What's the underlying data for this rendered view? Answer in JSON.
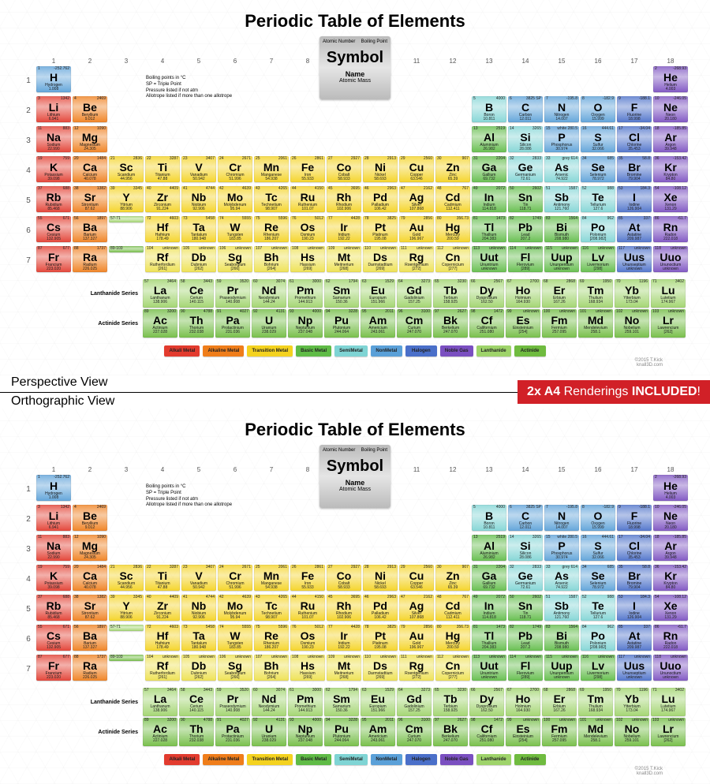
{
  "title": "Periodic Table of Elements",
  "views": {
    "top": "Perspective View",
    "bottom": "Orthographic View"
  },
  "banner": {
    "prefix": "2x A4",
    "mid": " Renderings ",
    "suffix": "INCLUDED",
    "tail": "!"
  },
  "key": {
    "an": "Atomic Number",
    "bp": "Boiling Point",
    "sym": "Symbol",
    "name": "Name",
    "mass": "Atomic Mass"
  },
  "note": "Boiling points in °C\nSP = Triple Point\nPressure listed if not atm\nAllotrope listed if more than one allotrope",
  "credit": "©2015 T.Kick\nknall3D.com",
  "colors": {
    "alkali": "#e23b2e",
    "alkaline": "#ef7d1a",
    "transition": "#f4d21f",
    "basic": "#5fbb46",
    "semimetal": "#7fd4d4",
    "nonmetal": "#5aa0d8",
    "halogen": "#4a6fc9",
    "noble": "#7a4fc0",
    "lanthanide": "#9ed36a",
    "actinide": "#6fbb3f",
    "unknown": "#ede04b"
  },
  "legend": [
    {
      "label": "Alkali Metal",
      "c": "alkali"
    },
    {
      "label": "Alkaline Metal",
      "c": "alkaline"
    },
    {
      "label": "Transition Metal",
      "c": "transition"
    },
    {
      "label": "Basic Metal",
      "c": "basic"
    },
    {
      "label": "SemiMetal",
      "c": "semimetal"
    },
    {
      "label": "NonMetal",
      "c": "nonmetal"
    },
    {
      "label": "Halogen",
      "c": "halogen"
    },
    {
      "label": "Noble Gas",
      "c": "noble"
    },
    {
      "label": "Lanthanide",
      "c": "lanthanide"
    },
    {
      "label": "Actinide",
      "c": "actinide"
    }
  ],
  "groups": [
    1,
    2,
    3,
    4,
    5,
    6,
    7,
    8,
    9,
    10,
    11,
    12,
    13,
    14,
    15,
    16,
    17,
    18
  ],
  "periods": [
    1,
    2,
    3,
    4,
    5,
    6,
    7
  ],
  "elements": [
    {
      "n": 1,
      "s": "H",
      "nm": "Hydrogen",
      "m": "1.008",
      "bp": "-252.762",
      "g": 1,
      "p": 1,
      "c": "nonmetal"
    },
    {
      "n": 2,
      "s": "He",
      "nm": "Helium",
      "m": "4.003",
      "bp": "-268.93",
      "g": 18,
      "p": 1,
      "c": "noble"
    },
    {
      "n": 3,
      "s": "Li",
      "nm": "Lithium",
      "m": "6.941",
      "bp": "1342",
      "g": 1,
      "p": 2,
      "c": "alkali"
    },
    {
      "n": 4,
      "s": "Be",
      "nm": "Beryllium",
      "m": "9.012",
      "bp": "2469",
      "g": 2,
      "p": 2,
      "c": "alkaline"
    },
    {
      "n": 5,
      "s": "B",
      "nm": "Boron",
      "m": "10.811",
      "bp": "4000",
      "g": 13,
      "p": 2,
      "c": "semimetal"
    },
    {
      "n": 6,
      "s": "C",
      "nm": "Carbon",
      "m": "12.011",
      "bp": "3825 SP",
      "g": 14,
      "p": 2,
      "c": "nonmetal"
    },
    {
      "n": 7,
      "s": "N",
      "nm": "Nitrogen",
      "m": "14.007",
      "bp": "-195.8",
      "g": 15,
      "p": 2,
      "c": "nonmetal"
    },
    {
      "n": 8,
      "s": "O",
      "nm": "Oxygen",
      "m": "15.999",
      "bp": "-182.9",
      "g": 16,
      "p": 2,
      "c": "nonmetal"
    },
    {
      "n": 9,
      "s": "F",
      "nm": "Fluorine",
      "m": "18.998",
      "bp": "-188.1",
      "g": 17,
      "p": 2,
      "c": "halogen"
    },
    {
      "n": 10,
      "s": "Ne",
      "nm": "Neon",
      "m": "20.180",
      "bp": "-246.05",
      "g": 18,
      "p": 2,
      "c": "noble"
    },
    {
      "n": 11,
      "s": "Na",
      "nm": "Sodium",
      "m": "22.990",
      "bp": "883",
      "g": 1,
      "p": 3,
      "c": "alkali"
    },
    {
      "n": 12,
      "s": "Mg",
      "nm": "Magnesium",
      "m": "24.305",
      "bp": "1090",
      "g": 2,
      "p": 3,
      "c": "alkaline"
    },
    {
      "n": 13,
      "s": "Al",
      "nm": "Aluminium",
      "m": "26.982",
      "bp": "2519",
      "g": 13,
      "p": 3,
      "c": "basic"
    },
    {
      "n": 14,
      "s": "Si",
      "nm": "Silicon",
      "m": "28.086",
      "bp": "3265",
      "g": 14,
      "p": 3,
      "c": "semimetal"
    },
    {
      "n": 15,
      "s": "P",
      "nm": "Phosphorus",
      "m": "30.974",
      "bp": "white 280.5",
      "g": 15,
      "p": 3,
      "c": "nonmetal"
    },
    {
      "n": 16,
      "s": "S",
      "nm": "Sulfur",
      "m": "32.066",
      "bp": "444.61",
      "g": 16,
      "p": 3,
      "c": "nonmetal"
    },
    {
      "n": 17,
      "s": "Cl",
      "nm": "Chlorine",
      "m": "35.453",
      "bp": "-34.04",
      "g": 17,
      "p": 3,
      "c": "halogen"
    },
    {
      "n": 18,
      "s": "Ar",
      "nm": "Argon",
      "m": "39.948",
      "bp": "-185.85",
      "g": 18,
      "p": 3,
      "c": "noble"
    },
    {
      "n": 19,
      "s": "K",
      "nm": "Potassium",
      "m": "39.098",
      "bp": "759",
      "g": 1,
      "p": 4,
      "c": "alkali"
    },
    {
      "n": 20,
      "s": "Ca",
      "nm": "Calcium",
      "m": "40.078",
      "bp": "1484",
      "g": 2,
      "p": 4,
      "c": "alkaline"
    },
    {
      "n": 21,
      "s": "Sc",
      "nm": "Scandium",
      "m": "44.956",
      "bp": "2836",
      "g": 3,
      "p": 4,
      "c": "transition"
    },
    {
      "n": 22,
      "s": "Ti",
      "nm": "Titanium",
      "m": "47.88",
      "bp": "3287",
      "g": 4,
      "p": 4,
      "c": "transition"
    },
    {
      "n": 23,
      "s": "V",
      "nm": "Vanadium",
      "m": "50.942",
      "bp": "3407",
      "g": 5,
      "p": 4,
      "c": "transition"
    },
    {
      "n": 24,
      "s": "Cr",
      "nm": "Chromium",
      "m": "51.996",
      "bp": "2671",
      "g": 6,
      "p": 4,
      "c": "transition"
    },
    {
      "n": 25,
      "s": "Mn",
      "nm": "Manganese",
      "m": "54.938",
      "bp": "2061",
      "g": 7,
      "p": 4,
      "c": "transition"
    },
    {
      "n": 26,
      "s": "Fe",
      "nm": "Iron",
      "m": "55.933",
      "bp": "2861",
      "g": 8,
      "p": 4,
      "c": "transition"
    },
    {
      "n": 27,
      "s": "Co",
      "nm": "Cobalt",
      "m": "58.933",
      "bp": "2927",
      "g": 9,
      "p": 4,
      "c": "transition"
    },
    {
      "n": 28,
      "s": "Ni",
      "nm": "Nickel",
      "m": "58.693",
      "bp": "2913",
      "g": 10,
      "p": 4,
      "c": "transition"
    },
    {
      "n": 29,
      "s": "Cu",
      "nm": "Copper",
      "m": "63.546",
      "bp": "2560",
      "g": 11,
      "p": 4,
      "c": "transition"
    },
    {
      "n": 30,
      "s": "Zn",
      "nm": "Zinc",
      "m": "65.39",
      "bp": "907",
      "g": 12,
      "p": 4,
      "c": "transition"
    },
    {
      "n": 31,
      "s": "Ga",
      "nm": "Gallium",
      "m": "69.732",
      "bp": "2204",
      "g": 13,
      "p": 4,
      "c": "basic"
    },
    {
      "n": 32,
      "s": "Ge",
      "nm": "Germanium",
      "m": "72.61",
      "bp": "2833",
      "g": 14,
      "p": 4,
      "c": "semimetal"
    },
    {
      "n": 33,
      "s": "As",
      "nm": "Arsenic",
      "m": "74.922",
      "bp": "grey 614",
      "g": 15,
      "p": 4,
      "c": "semimetal"
    },
    {
      "n": 34,
      "s": "Se",
      "nm": "Selenium",
      "m": "78.972",
      "bp": "685",
      "g": 16,
      "p": 4,
      "c": "nonmetal"
    },
    {
      "n": 35,
      "s": "Br",
      "nm": "Bromine",
      "m": "79.904",
      "bp": "58.8",
      "g": 17,
      "p": 4,
      "c": "halogen"
    },
    {
      "n": 36,
      "s": "Kr",
      "nm": "Krypton",
      "m": "84.80",
      "bp": "-153.42",
      "g": 18,
      "p": 4,
      "c": "noble"
    },
    {
      "n": 37,
      "s": "Rb",
      "nm": "Rubidium",
      "m": "85.468",
      "bp": "688",
      "g": 1,
      "p": 5,
      "c": "alkali"
    },
    {
      "n": 38,
      "s": "Sr",
      "nm": "Strontium",
      "m": "87.62",
      "bp": "1382",
      "g": 2,
      "p": 5,
      "c": "alkaline"
    },
    {
      "n": 39,
      "s": "Y",
      "nm": "Yttrium",
      "m": "88.906",
      "bp": "3345",
      "g": 3,
      "p": 5,
      "c": "transition"
    },
    {
      "n": 40,
      "s": "Zr",
      "nm": "Zirconium",
      "m": "91.224",
      "bp": "4409",
      "g": 4,
      "p": 5,
      "c": "transition"
    },
    {
      "n": 41,
      "s": "Nb",
      "nm": "Niobium",
      "m": "92.906",
      "bp": "4744",
      "g": 5,
      "p": 5,
      "c": "transition"
    },
    {
      "n": 42,
      "s": "Mo",
      "nm": "Molybdenum",
      "m": "95.94",
      "bp": "4639",
      "g": 6,
      "p": 5,
      "c": "transition"
    },
    {
      "n": 43,
      "s": "Tc",
      "nm": "Technetium",
      "m": "98.907",
      "bp": "4265",
      "g": 7,
      "p": 5,
      "c": "transition"
    },
    {
      "n": 44,
      "s": "Ru",
      "nm": "Ruthenium",
      "m": "101.07",
      "bp": "4150",
      "g": 8,
      "p": 5,
      "c": "transition"
    },
    {
      "n": 45,
      "s": "Rh",
      "nm": "Rhodium",
      "m": "102.906",
      "bp": "3695",
      "g": 9,
      "p": 5,
      "c": "transition"
    },
    {
      "n": 46,
      "s": "Pd",
      "nm": "Palladium",
      "m": "106.42",
      "bp": "2963",
      "g": 10,
      "p": 5,
      "c": "transition"
    },
    {
      "n": 47,
      "s": "Ag",
      "nm": "Silver",
      "m": "107.868",
      "bp": "2162",
      "g": 11,
      "p": 5,
      "c": "transition"
    },
    {
      "n": 48,
      "s": "Cd",
      "nm": "Cadmium",
      "m": "112.411",
      "bp": "767",
      "g": 12,
      "p": 5,
      "c": "transition"
    },
    {
      "n": 49,
      "s": "In",
      "nm": "Indium",
      "m": "114.818",
      "bp": "2072",
      "g": 13,
      "p": 5,
      "c": "basic"
    },
    {
      "n": 50,
      "s": "Sn",
      "nm": "Tin",
      "m": "118.71",
      "bp": "2602",
      "g": 14,
      "p": 5,
      "c": "basic"
    },
    {
      "n": 51,
      "s": "Sb",
      "nm": "Antimony",
      "m": "121.760",
      "bp": "1587",
      "g": 15,
      "p": 5,
      "c": "semimetal"
    },
    {
      "n": 52,
      "s": "Te",
      "nm": "Tellurium",
      "m": "127.6",
      "bp": "988",
      "g": 16,
      "p": 5,
      "c": "semimetal"
    },
    {
      "n": 53,
      "s": "I",
      "nm": "Iodine",
      "m": "126.904",
      "bp": "184.3",
      "g": 17,
      "p": 5,
      "c": "halogen"
    },
    {
      "n": 54,
      "s": "Xe",
      "nm": "Xenon",
      "m": "131.29",
      "bp": "-108.12",
      "g": 18,
      "p": 5,
      "c": "noble"
    },
    {
      "n": 55,
      "s": "Cs",
      "nm": "Cesium",
      "m": "132.905",
      "bp": "671",
      "g": 1,
      "p": 6,
      "c": "alkali"
    },
    {
      "n": 56,
      "s": "Ba",
      "nm": "Barium",
      "m": "137.327",
      "bp": "1897",
      "g": 2,
      "p": 6,
      "c": "alkaline"
    },
    {
      "n": "57-71",
      "s": "",
      "nm": "",
      "m": "",
      "bp": "",
      "g": 3,
      "p": 6,
      "c": "lanthanide"
    },
    {
      "n": 72,
      "s": "Hf",
      "nm": "Hafnium",
      "m": "178.49",
      "bp": "4603",
      "g": 4,
      "p": 6,
      "c": "transition"
    },
    {
      "n": 73,
      "s": "Ta",
      "nm": "Tantalum",
      "m": "180.948",
      "bp": "5458",
      "g": 5,
      "p": 6,
      "c": "transition"
    },
    {
      "n": 74,
      "s": "W",
      "nm": "Tungsten",
      "m": "183.85",
      "bp": "5555",
      "g": 6,
      "p": 6,
      "c": "transition"
    },
    {
      "n": 75,
      "s": "Re",
      "nm": "Rhenium",
      "m": "186.207",
      "bp": "5596",
      "g": 7,
      "p": 6,
      "c": "transition"
    },
    {
      "n": 76,
      "s": "Os",
      "nm": "Osmium",
      "m": "190.23",
      "bp": "5012",
      "g": 8,
      "p": 6,
      "c": "transition"
    },
    {
      "n": 77,
      "s": "Ir",
      "nm": "Iridium",
      "m": "192.22",
      "bp": "4428",
      "g": 9,
      "p": 6,
      "c": "transition"
    },
    {
      "n": 78,
      "s": "Pt",
      "nm": "Platinum",
      "m": "195.08",
      "bp": "3825",
      "g": 10,
      "p": 6,
      "c": "transition"
    },
    {
      "n": 79,
      "s": "Au",
      "nm": "Gold",
      "m": "196.967",
      "bp": "2856",
      "g": 11,
      "p": 6,
      "c": "transition"
    },
    {
      "n": 80,
      "s": "Hg",
      "nm": "Mercury",
      "m": "200.59",
      "bp": "356.73",
      "g": 12,
      "p": 6,
      "c": "transition"
    },
    {
      "n": 81,
      "s": "Tl",
      "nm": "Thallium",
      "m": "204.383",
      "bp": "1473",
      "g": 13,
      "p": 6,
      "c": "basic"
    },
    {
      "n": 82,
      "s": "Pb",
      "nm": "Lead",
      "m": "207.2",
      "bp": "1749",
      "g": 14,
      "p": 6,
      "c": "basic"
    },
    {
      "n": 83,
      "s": "Bi",
      "nm": "Bismuth",
      "m": "208.980",
      "bp": "1564",
      "g": 15,
      "p": 6,
      "c": "basic"
    },
    {
      "n": 84,
      "s": "Po",
      "nm": "Polonium",
      "m": "[208.982]",
      "bp": "962",
      "g": 16,
      "p": 6,
      "c": "semimetal"
    },
    {
      "n": 85,
      "s": "At",
      "nm": "Astatine",
      "m": "209.987",
      "bp": "337",
      "g": 17,
      "p": 6,
      "c": "halogen"
    },
    {
      "n": 86,
      "s": "Rn",
      "nm": "Radon",
      "m": "222.018",
      "bp": "-61.7",
      "g": 18,
      "p": 6,
      "c": "noble"
    },
    {
      "n": 87,
      "s": "Fr",
      "nm": "Francium",
      "m": "223.020",
      "bp": "677",
      "g": 1,
      "p": 7,
      "c": "alkali"
    },
    {
      "n": 88,
      "s": "Ra",
      "nm": "Radium",
      "m": "226.025",
      "bp": "1737",
      "g": 2,
      "p": 7,
      "c": "alkaline"
    },
    {
      "n": "89-103",
      "s": "",
      "nm": "",
      "m": "",
      "bp": "",
      "g": 3,
      "p": 7,
      "c": "actinide"
    },
    {
      "n": 104,
      "s": "Rf",
      "nm": "Rutherfordium",
      "m": "[261]",
      "bp": "unknown",
      "g": 4,
      "p": 7,
      "c": "unknown"
    },
    {
      "n": 105,
      "s": "Db",
      "nm": "Dubnium",
      "m": "[262]",
      "bp": "unknown",
      "g": 5,
      "p": 7,
      "c": "unknown"
    },
    {
      "n": 106,
      "s": "Sg",
      "nm": "Seaborgium",
      "m": "[266]",
      "bp": "unknown",
      "g": 6,
      "p": 7,
      "c": "unknown"
    },
    {
      "n": 107,
      "s": "Bh",
      "nm": "Bohrium",
      "m": "[264]",
      "bp": "unknown",
      "g": 7,
      "p": 7,
      "c": "unknown"
    },
    {
      "n": 108,
      "s": "Hs",
      "nm": "Hassium",
      "m": "[269]",
      "bp": "unknown",
      "g": 8,
      "p": 7,
      "c": "unknown"
    },
    {
      "n": 109,
      "s": "Mt",
      "nm": "Meitnerium",
      "m": "[268]",
      "bp": "unknown",
      "g": 9,
      "p": 7,
      "c": "unknown"
    },
    {
      "n": 110,
      "s": "Ds",
      "nm": "Darmstadtium",
      "m": "[269]",
      "bp": "unknown",
      "g": 10,
      "p": 7,
      "c": "unknown"
    },
    {
      "n": 111,
      "s": "Rg",
      "nm": "Roentgenium",
      "m": "[272]",
      "bp": "unknown",
      "g": 11,
      "p": 7,
      "c": "unknown"
    },
    {
      "n": 112,
      "s": "Cn",
      "nm": "Copernicium",
      "m": "[277]",
      "bp": "unknown",
      "g": 12,
      "p": 7,
      "c": "unknown"
    },
    {
      "n": 113,
      "s": "Uut",
      "nm": "Ununtrium",
      "m": "unknown",
      "bp": "unknown",
      "g": 13,
      "p": 7,
      "c": "basic"
    },
    {
      "n": 114,
      "s": "Fl",
      "nm": "Flerovium",
      "m": "[289]",
      "bp": "unknown",
      "g": 14,
      "p": 7,
      "c": "basic"
    },
    {
      "n": 115,
      "s": "Uup",
      "nm": "Ununpentium",
      "m": "unknown",
      "bp": "unknown",
      "g": 15,
      "p": 7,
      "c": "basic"
    },
    {
      "n": 116,
      "s": "Lv",
      "nm": "Livermorium",
      "m": "[298]",
      "bp": "unknown",
      "g": 16,
      "p": 7,
      "c": "basic"
    },
    {
      "n": 117,
      "s": "Uus",
      "nm": "Ununseptium",
      "m": "unknown",
      "bp": "unknown",
      "g": 17,
      "p": 7,
      "c": "halogen"
    },
    {
      "n": 118,
      "s": "Uuo",
      "nm": "Ununoctium",
      "m": "unknown",
      "bp": "unknown",
      "g": 18,
      "p": 7,
      "c": "noble"
    }
  ],
  "lanth_label": "Lanthanide Series",
  "act_label": "Actinide Series",
  "lanthanides": [
    {
      "n": 57,
      "s": "La",
      "nm": "Lanthanum",
      "m": "138.906",
      "bp": "3464"
    },
    {
      "n": 58,
      "s": "Ce",
      "nm": "Cerium",
      "m": "140.115",
      "bp": "3443"
    },
    {
      "n": 59,
      "s": "Pr",
      "nm": "Praseodymium",
      "m": "140.908",
      "bp": "3520"
    },
    {
      "n": 60,
      "s": "Nd",
      "nm": "Neodymium",
      "m": "144.24",
      "bp": "3074"
    },
    {
      "n": 61,
      "s": "Pm",
      "nm": "Promethium",
      "m": "144.913",
      "bp": "3000"
    },
    {
      "n": 62,
      "s": "Sm",
      "nm": "Samarium",
      "m": "150.36",
      "bp": "1794"
    },
    {
      "n": 63,
      "s": "Eu",
      "nm": "Europium",
      "m": "151.966",
      "bp": "1529"
    },
    {
      "n": 64,
      "s": "Gd",
      "nm": "Gadolinium",
      "m": "157.25",
      "bp": "3273"
    },
    {
      "n": 65,
      "s": "Tb",
      "nm": "Terbium",
      "m": "158.925",
      "bp": "3230"
    },
    {
      "n": 66,
      "s": "Dy",
      "nm": "Dysprosium",
      "m": "162.50",
      "bp": "2567"
    },
    {
      "n": 67,
      "s": "Ho",
      "nm": "Holmium",
      "m": "164.930",
      "bp": "2700"
    },
    {
      "n": 68,
      "s": "Er",
      "nm": "Erbium",
      "m": "167.26",
      "bp": "2868"
    },
    {
      "n": 69,
      "s": "Tm",
      "nm": "Thulium",
      "m": "168.934",
      "bp": "1950"
    },
    {
      "n": 70,
      "s": "Yb",
      "nm": "Ytterbium",
      "m": "173.04",
      "bp": "1196"
    },
    {
      "n": 71,
      "s": "Lu",
      "nm": "Lutetium",
      "m": "174.967",
      "bp": "3402"
    }
  ],
  "actinides": [
    {
      "n": 89,
      "s": "Ac",
      "nm": "Actinium",
      "m": "227.028",
      "bp": "3200"
    },
    {
      "n": 90,
      "s": "Th",
      "nm": "Thorium",
      "m": "232.038",
      "bp": "4788"
    },
    {
      "n": 91,
      "s": "Pa",
      "nm": "Protactinium",
      "m": "231.036",
      "bp": "4027"
    },
    {
      "n": 92,
      "s": "U",
      "nm": "Uranium",
      "m": "238.029",
      "bp": "4131"
    },
    {
      "n": 93,
      "s": "Np",
      "nm": "Neptunium",
      "m": "237.048",
      "bp": "4000"
    },
    {
      "n": 94,
      "s": "Pu",
      "nm": "Plutonium",
      "m": "244.064",
      "bp": "3228"
    },
    {
      "n": 95,
      "s": "Am",
      "nm": "Americium",
      "m": "243.061",
      "bp": "2011"
    },
    {
      "n": 96,
      "s": "Cm",
      "nm": "Curium",
      "m": "247.070",
      "bp": "3100"
    },
    {
      "n": 97,
      "s": "Bk",
      "nm": "Berkelium",
      "m": "247.070",
      "bp": "2627"
    },
    {
      "n": 98,
      "s": "Cf",
      "nm": "Californium",
      "m": "251.080",
      "bp": "1472"
    },
    {
      "n": 99,
      "s": "Es",
      "nm": "Einsteinium",
      "m": "[254]",
      "bp": "unknown"
    },
    {
      "n": 100,
      "s": "Fm",
      "nm": "Fermium",
      "m": "257.095",
      "bp": "unknown"
    },
    {
      "n": 101,
      "s": "Md",
      "nm": "Mendelevium",
      "m": "258.1",
      "bp": "unknown"
    },
    {
      "n": 102,
      "s": "No",
      "nm": "Nobelium",
      "m": "259.101",
      "bp": "unknown"
    },
    {
      "n": 103,
      "s": "Lr",
      "nm": "Lawrencium",
      "m": "[262]",
      "bp": "unknown"
    }
  ]
}
